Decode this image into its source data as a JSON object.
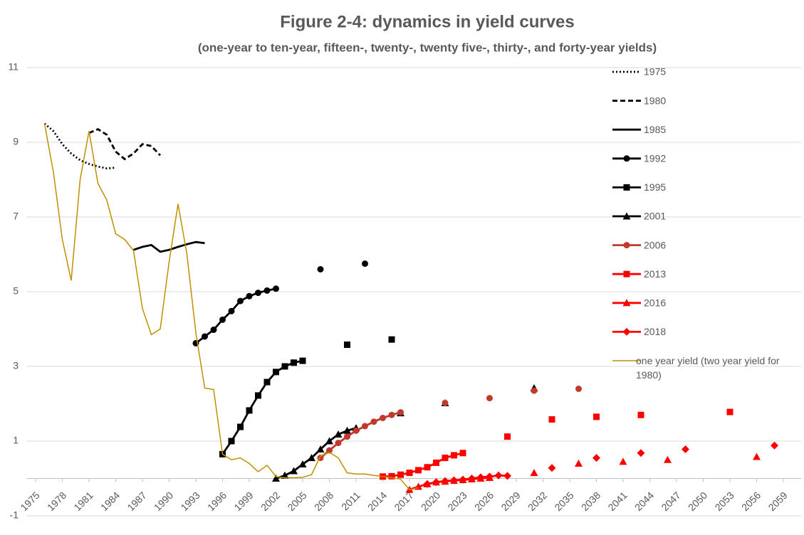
{
  "chart_data": {
    "type": "line",
    "title": "Figure 2-4: dynamics in yield curves",
    "subtitle": "(one-year to ten-year, fifteen-, twenty-, twenty five-, thirty-, and forty-year yields)",
    "xlim": [
      1974,
      2061
    ],
    "xticks": [
      1975,
      1978,
      1981,
      1984,
      1987,
      1990,
      1993,
      1996,
      1999,
      2002,
      2005,
      2008,
      2011,
      2014,
      2017,
      2020,
      2023,
      2026,
      2029,
      2032,
      2035,
      2038,
      2041,
      2044,
      2047,
      2050,
      2053,
      2056,
      2059
    ],
    "ylim": [
      -1,
      11
    ],
    "yticks": [
      -1,
      1,
      3,
      5,
      7,
      9,
      11
    ],
    "grid": true,
    "legend": "right",
    "series": [
      {
        "name": "1975",
        "color": "#000000",
        "dash": "dotted",
        "marker": null,
        "x": [
          1976,
          1977,
          1978,
          1979,
          1980,
          1981,
          1982,
          1983,
          1984
        ],
        "values": [
          9.5,
          9.3,
          8.95,
          8.7,
          8.52,
          8.42,
          8.35,
          8.3,
          8.32
        ]
      },
      {
        "name": "1980",
        "color": "#000000",
        "dash": "dashed",
        "marker": null,
        "x": [
          1981,
          1982,
          1983,
          1984,
          1985,
          1986,
          1987,
          1988,
          1989
        ],
        "values": [
          9.25,
          9.35,
          9.2,
          8.75,
          8.55,
          8.7,
          8.95,
          8.9,
          8.65
        ]
      },
      {
        "name": "1985",
        "color": "#000000",
        "dash": "solid",
        "marker": null,
        "x": [
          1986,
          1987,
          1988,
          1989,
          1990,
          1991,
          1992,
          1993,
          1994
        ],
        "values": [
          6.12,
          6.2,
          6.25,
          6.07,
          6.12,
          6.2,
          6.27,
          6.33,
          6.3
        ]
      },
      {
        "name": "1992",
        "color": "#000000",
        "dash": "solid",
        "marker": "circle",
        "x": [
          1993,
          1994,
          1995,
          1996,
          1997,
          1998,
          1999,
          2000,
          2001,
          2002,
          2007,
          2012
        ],
        "values": [
          3.62,
          3.8,
          3.98,
          4.25,
          4.48,
          4.75,
          4.88,
          4.97,
          5.03,
          5.08,
          5.6,
          5.75
        ]
      },
      {
        "name": "1995",
        "color": "#000000",
        "dash": "solid",
        "marker": "square",
        "x": [
          1996,
          1997,
          1998,
          1999,
          2000,
          2001,
          2002,
          2003,
          2004,
          2005,
          2010,
          2015
        ],
        "values": [
          0.65,
          1.0,
          1.38,
          1.82,
          2.22,
          2.58,
          2.85,
          3.0,
          3.1,
          3.15,
          3.58,
          3.72
        ]
      },
      {
        "name": "2001",
        "color": "#000000",
        "dash": "solid",
        "marker": "triangle",
        "x": [
          2002,
          2003,
          2004,
          2005,
          2006,
          2007,
          2008,
          2009,
          2010,
          2011,
          2016,
          2021,
          2031
        ],
        "values": [
          0.0,
          0.08,
          0.2,
          0.38,
          0.55,
          0.78,
          1.0,
          1.18,
          1.28,
          1.35,
          1.75,
          2.02,
          2.42
        ]
      },
      {
        "name": "2006",
        "color": "#c0392b",
        "dash": "solid",
        "marker": "circle",
        "x": [
          2007,
          2008,
          2009,
          2010,
          2011,
          2012,
          2013,
          2014,
          2015,
          2016,
          2021,
          2026,
          2031,
          2036
        ],
        "values": [
          0.55,
          0.75,
          0.95,
          1.12,
          1.28,
          1.4,
          1.52,
          1.62,
          1.7,
          1.77,
          2.02,
          2.15,
          2.35,
          2.4
        ]
      },
      {
        "name": "2013",
        "color": "#ff0000",
        "dash": "solid",
        "marker": "square",
        "x": [
          2014,
          2015,
          2016,
          2017,
          2018,
          2019,
          2020,
          2021,
          2022,
          2023,
          2028,
          2033,
          2038,
          2043,
          2053
        ],
        "values": [
          0.05,
          0.06,
          0.1,
          0.15,
          0.22,
          0.3,
          0.42,
          0.55,
          0.62,
          0.68,
          1.12,
          1.58,
          1.65,
          1.7,
          1.78
        ]
      },
      {
        "name": "2016",
        "color": "#ff0000",
        "dash": "solid",
        "marker": "triangle",
        "x": [
          2017,
          2018,
          2019,
          2020,
          2021,
          2022,
          2023,
          2024,
          2025,
          2026,
          2031,
          2036,
          2041,
          2046,
          2056
        ],
        "values": [
          -0.3,
          -0.22,
          -0.15,
          -0.1,
          -0.08,
          -0.06,
          -0.04,
          -0.02,
          0.0,
          0.02,
          0.15,
          0.4,
          0.45,
          0.5,
          0.58
        ]
      },
      {
        "name": "2018",
        "color": "#ff0000",
        "dash": "solid",
        "marker": "diamond",
        "x": [
          2019,
          2020,
          2021,
          2022,
          2023,
          2024,
          2025,
          2026,
          2027,
          2028,
          2033,
          2038,
          2043,
          2048,
          2058
        ],
        "values": [
          -0.15,
          -0.1,
          -0.07,
          -0.05,
          -0.03,
          0.0,
          0.03,
          0.05,
          0.08,
          0.07,
          0.28,
          0.55,
          0.68,
          0.78,
          0.88
        ]
      },
      {
        "name": "one year yield (two year yield for 1980)",
        "color": "#bf9000",
        "dash": "thin",
        "marker": null,
        "x": [
          1976,
          1977,
          1978,
          1979,
          1980,
          1981,
          1982,
          1983,
          1984,
          1985,
          1986,
          1987,
          1988,
          1989,
          1990,
          1991,
          1992,
          1993,
          1994,
          1995,
          1996,
          1997,
          1998,
          1999,
          2000,
          2001,
          2002,
          2003,
          2004,
          2005,
          2006,
          2007,
          2008,
          2009,
          2010,
          2011,
          2012,
          2013,
          2014,
          2015,
          2016,
          2017,
          2018
        ],
        "values": [
          9.5,
          8.2,
          6.4,
          5.3,
          8.0,
          9.3,
          7.9,
          7.45,
          6.55,
          6.4,
          6.1,
          4.55,
          3.85,
          4.0,
          5.8,
          7.35,
          6.0,
          3.9,
          2.42,
          2.38,
          0.65,
          0.5,
          0.55,
          0.4,
          0.18,
          0.35,
          0.05,
          0.02,
          0.02,
          0.03,
          0.1,
          0.6,
          0.7,
          0.55,
          0.15,
          0.12,
          0.12,
          0.08,
          0.05,
          0.02,
          -0.02,
          -0.3,
          -0.25
        ]
      }
    ]
  }
}
